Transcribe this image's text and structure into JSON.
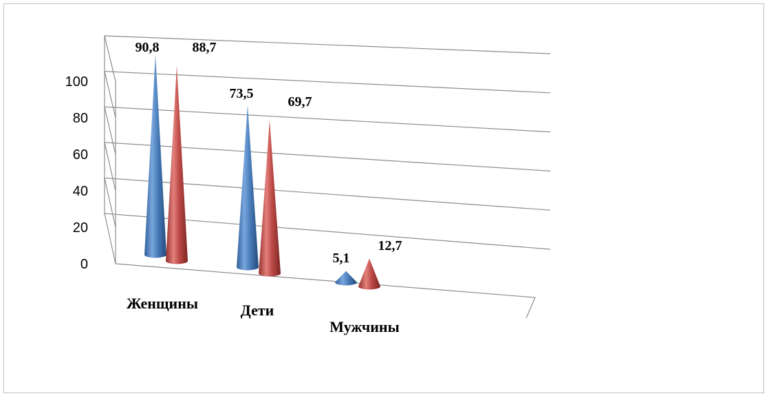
{
  "chart_data": {
    "type": "bar",
    "style": "3d-cone",
    "title": "",
    "xlabel": "",
    "ylabel": "",
    "categories": [
      "Женщины",
      "Дети",
      "Мужчины"
    ],
    "series": [
      {
        "color": "#4a7ebb",
        "values": [
          90.8,
          73.5,
          5.1
        ],
        "labels": [
          "90,8",
          "73,5",
          "5,1"
        ]
      },
      {
        "color": "#be4b48",
        "values": [
          88.7,
          69.7,
          12.7
        ],
        "labels": [
          "88,7",
          "69,7",
          "12,7"
        ]
      }
    ],
    "ylim": [
      0,
      100
    ],
    "yticks": [
      "0",
      "20",
      "40",
      "60",
      "80",
      "100"
    ],
    "grid": true,
    "legend": "none"
  }
}
